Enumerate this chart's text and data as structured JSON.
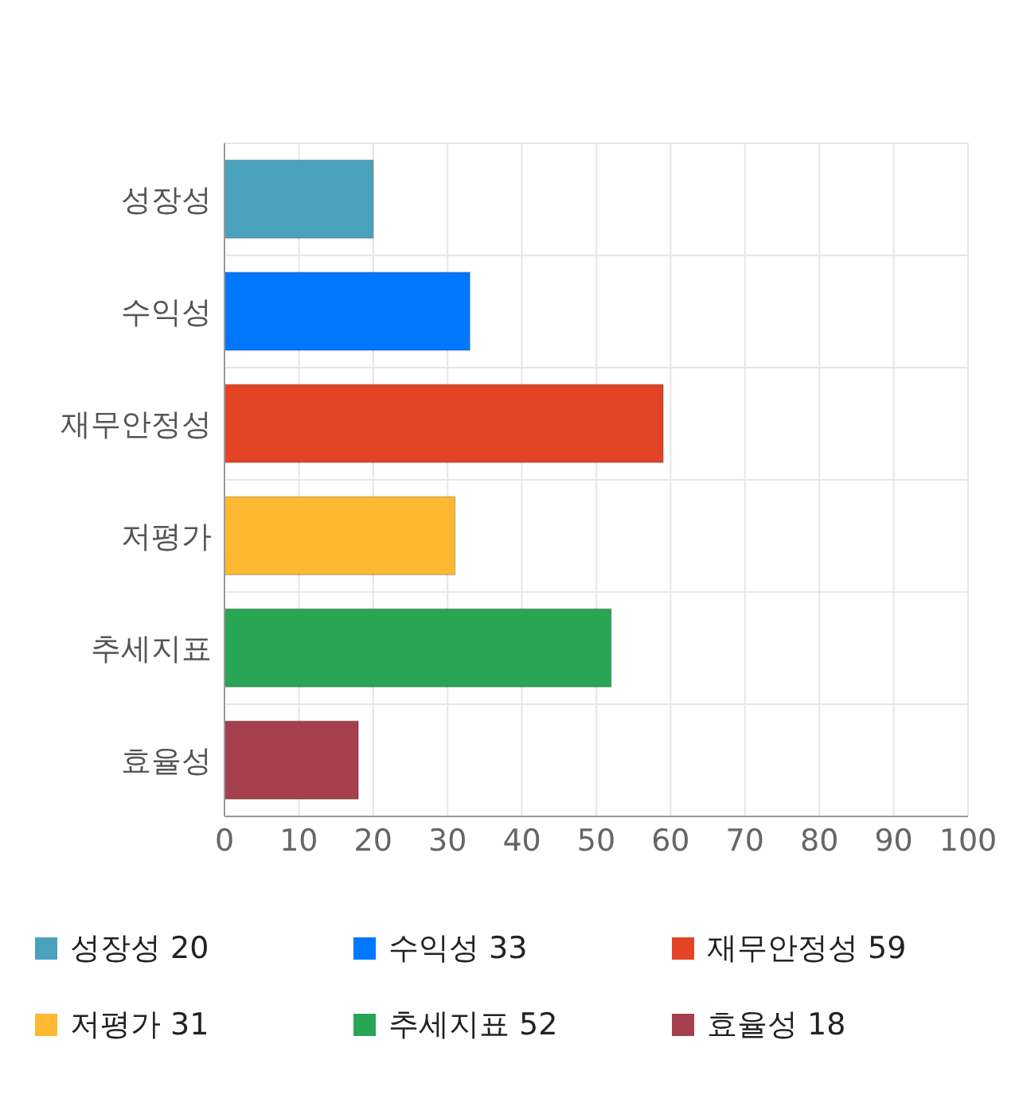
{
  "chart_data": {
    "type": "bar",
    "orientation": "horizontal",
    "stacked": true,
    "categories": [
      "성장성",
      "수익성",
      "재무안정성",
      "저평가",
      "추세지표",
      "효율성"
    ],
    "series": [
      {
        "name": "성장성 20",
        "color": "#4aa1bc",
        "values": [
          20,
          null,
          null,
          null,
          null,
          null
        ]
      },
      {
        "name": "수익성 33",
        "color": "#0077ff",
        "values": [
          null,
          33,
          null,
          null,
          null,
          null
        ]
      },
      {
        "name": "재무안정성 59",
        "color": "#e34426",
        "values": [
          null,
          null,
          59,
          null,
          null,
          null
        ]
      },
      {
        "name": "저평가 31",
        "color": "#feb832",
        "values": [
          null,
          null,
          null,
          31,
          null,
          null
        ]
      },
      {
        "name": "추세지표 52",
        "color": "#29a654",
        "values": [
          null,
          null,
          null,
          null,
          52,
          null
        ]
      },
      {
        "name": "효율성 18",
        "color": "#a6404e",
        "values": [
          null,
          null,
          null,
          null,
          null,
          18
        ]
      }
    ],
    "xlim": [
      0,
      100
    ],
    "xticks": [
      0,
      10,
      20,
      30,
      40,
      50,
      60,
      70,
      80,
      90,
      100
    ],
    "grid": true,
    "legend": "bottom"
  }
}
